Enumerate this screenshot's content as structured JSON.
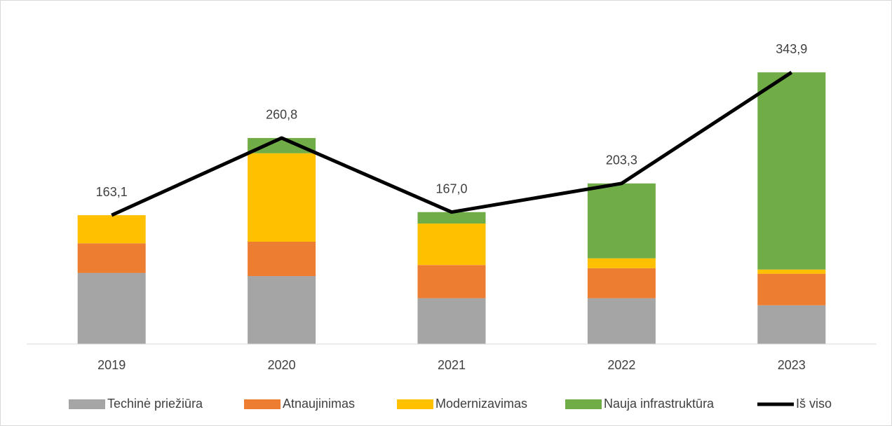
{
  "chart_data": {
    "type": "bar",
    "stacked": true,
    "categories": [
      "2019",
      "2020",
      "2021",
      "2022",
      "2023"
    ],
    "ylim": [
      0,
      400
    ],
    "series": [
      {
        "name": "Techinė priežiūra",
        "color": "#a5a5a5",
        "values": [
          90,
          86,
          58,
          58,
          49
        ]
      },
      {
        "name": "Atnaujinimas",
        "color": "#ed7d31",
        "values": [
          37.5,
          43.5,
          42,
          38,
          40
        ]
      },
      {
        "name": "Modernizavimas",
        "color": "#ffc000",
        "values": [
          35.6,
          112,
          52.5,
          12.5,
          5.3
        ]
      },
      {
        "name": "Nauja infrastruktūra",
        "color": "#70ad47",
        "values": [
          0,
          19.3,
          14.5,
          94.8,
          249.6
        ]
      },
      {
        "name": "Iš viso",
        "type": "line",
        "color": "#000000",
        "values": [
          163.1,
          260.8,
          167.0,
          203.3,
          343.9
        ],
        "value_labels": [
          "163,1",
          "260,8",
          "167,0",
          "203,3",
          "343,9"
        ]
      }
    ],
    "legend": "bottom"
  }
}
